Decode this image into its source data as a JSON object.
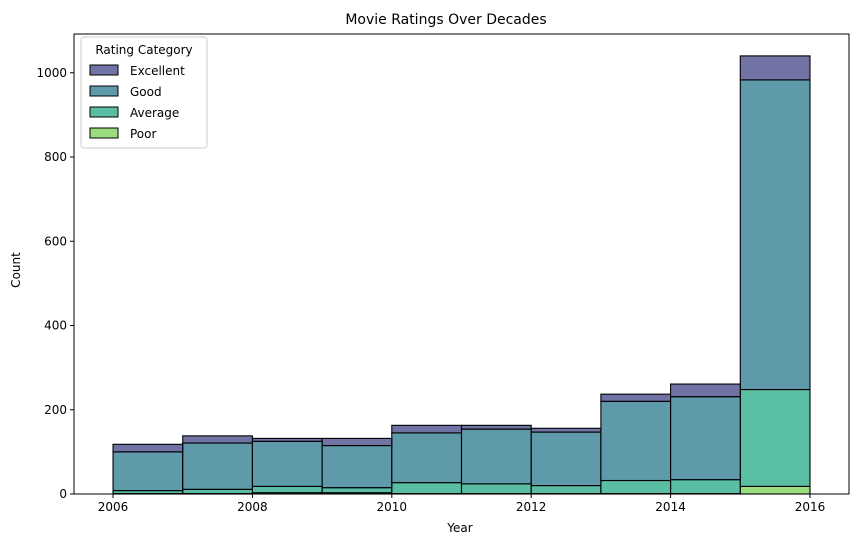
{
  "chart_data": {
    "type": "bar",
    "stacked": true,
    "title": "Movie Ratings Over Decades",
    "xlabel": "Year",
    "ylabel": "Count",
    "xlim": [
      2005.44,
      2016.56
    ],
    "ylim": [
      0,
      1092
    ],
    "x_ticks": [
      2006,
      2008,
      2010,
      2012,
      2014,
      2016
    ],
    "y_ticks": [
      0,
      200,
      400,
      600,
      800,
      1000
    ],
    "bin_edges": [
      2006,
      2007,
      2008,
      2009,
      2010,
      2011,
      2012,
      2013,
      2014,
      2015,
      2016
    ],
    "grid": false,
    "legend": {
      "title": "Rating Category",
      "placement": "top-left",
      "entries": [
        "Excellent",
        "Good",
        "Average",
        "Poor"
      ]
    },
    "series": [
      {
        "name": "Poor",
        "color": "#7ad151",
        "values": [
          1,
          1,
          3,
          3,
          1,
          1,
          1,
          1,
          1,
          18
        ]
      },
      {
        "name": "Average",
        "color": "#22a884",
        "values": [
          7,
          10,
          15,
          12,
          26,
          23,
          19,
          31,
          33,
          230
        ]
      },
      {
        "name": "Good",
        "color": "#2a788e",
        "values": [
          92,
          110,
          107,
          100,
          118,
          130,
          127,
          188,
          197,
          735
        ]
      },
      {
        "name": "Excellent",
        "color": "#414487",
        "values": [
          18,
          17,
          7,
          17,
          18,
          9,
          9,
          17,
          30,
          57
        ]
      }
    ]
  }
}
